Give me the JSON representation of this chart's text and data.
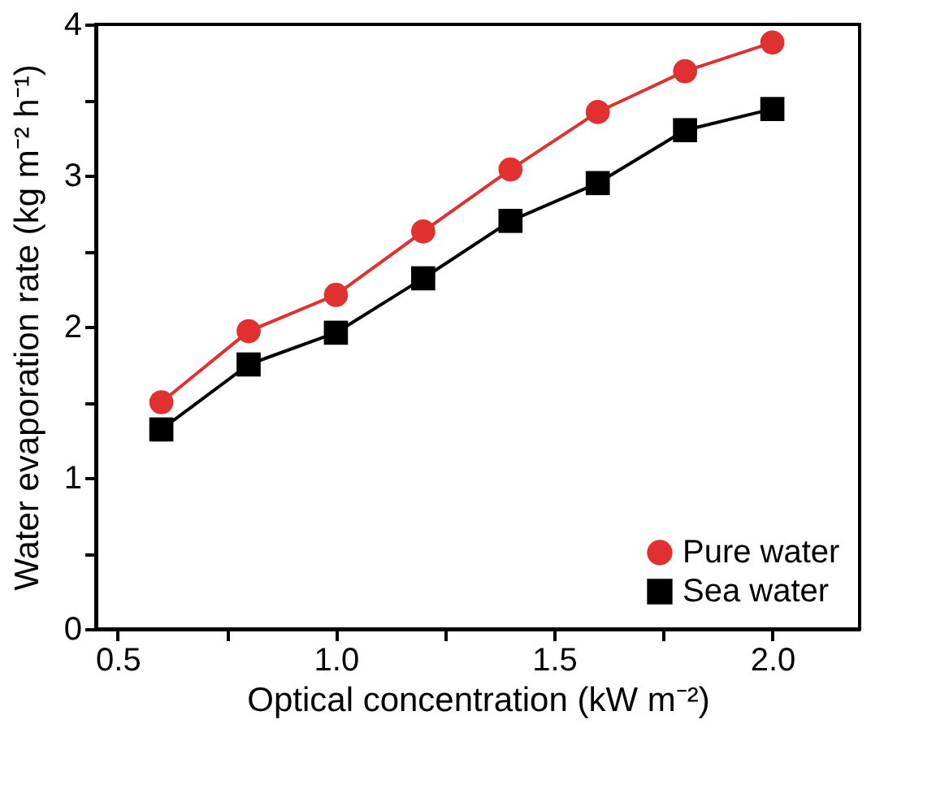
{
  "chart_data": {
    "type": "line",
    "xlabel": "Optical concentration (kW m⁻²)",
    "ylabel": "Water evaporation rate (kg m⁻² h⁻¹)",
    "x": [
      0.6,
      0.8,
      1.0,
      1.2,
      1.4,
      1.6,
      1.8,
      2.0
    ],
    "series": [
      {
        "name": "Pure water",
        "color": "#e03030",
        "marker": "circle",
        "values": [
          1.5,
          1.97,
          2.21,
          2.63,
          3.04,
          3.42,
          3.69,
          3.88
        ]
      },
      {
        "name": "Sea water",
        "color": "#000000",
        "marker": "square",
        "values": [
          1.32,
          1.75,
          1.96,
          2.32,
          2.7,
          2.95,
          3.3,
          3.44
        ]
      }
    ],
    "xlim": [
      0.45,
      2.2
    ],
    "xticks": [
      0.5,
      {
        "value": 0.75,
        "label": null
      },
      {
        "value": 1.0,
        "label": "1.0"
      },
      {
        "value": 1.25,
        "label": null
      },
      1.5,
      {
        "value": 1.75,
        "label": null
      },
      {
        "value": 2.0,
        "label": "2.0"
      }
    ],
    "ylim": [
      0,
      4
    ],
    "yticks": [
      0,
      {
        "value": 0.5,
        "label": null
      },
      1,
      {
        "value": 1.5,
        "label": null
      },
      2,
      {
        "value": 2.5,
        "label": null
      },
      3,
      {
        "value": 3.5,
        "label": null
      },
      4
    ],
    "grid": false,
    "legend": "bottom right",
    "line_style": "solid"
  }
}
